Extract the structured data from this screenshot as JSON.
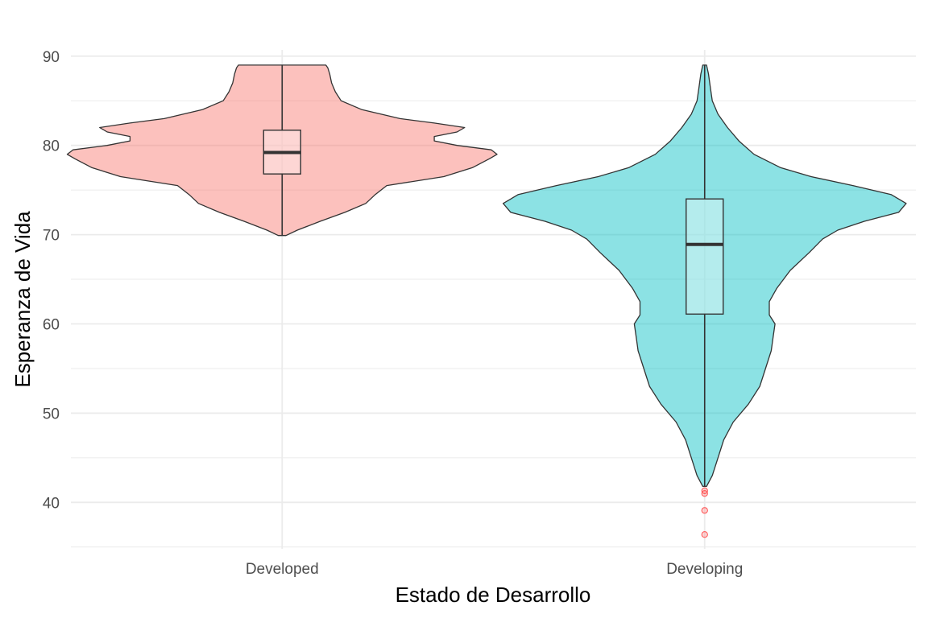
{
  "chart_data": {
    "type": "violin",
    "title": "",
    "xlabel": "Estado de Desarrollo",
    "ylabel": "Esperanza de Vida",
    "ylim": [
      34.8,
      90.7
    ],
    "yticks": [
      40,
      50,
      60,
      70,
      80,
      90
    ],
    "grid": true,
    "legend": "none",
    "categories": [
      "Developed",
      "Developing"
    ],
    "series": [
      {
        "category": "Developed",
        "color": "#F8766D",
        "min": 69.9,
        "q1": 76.8,
        "median": 79.2,
        "q3": 81.7,
        "max": 89.0,
        "outliers": [],
        "density": [
          [
            69.9,
            0.02
          ],
          [
            70.5,
            0.08
          ],
          [
            71.5,
            0.2
          ],
          [
            72.5,
            0.33
          ],
          [
            73.5,
            0.44
          ],
          [
            74.5,
            0.49
          ],
          [
            75.5,
            0.55
          ],
          [
            76.5,
            0.85
          ],
          [
            77.5,
            1.0
          ],
          [
            78.5,
            1.09
          ],
          [
            79.0,
            1.13
          ],
          [
            79.5,
            1.1
          ],
          [
            80.0,
            0.92
          ],
          [
            80.5,
            0.8
          ],
          [
            81.0,
            0.8
          ],
          [
            81.5,
            0.92
          ],
          [
            82.0,
            0.96
          ],
          [
            82.5,
            0.8
          ],
          [
            83.0,
            0.62
          ],
          [
            84.0,
            0.42
          ],
          [
            85.0,
            0.31
          ],
          [
            86.0,
            0.28
          ],
          [
            87.0,
            0.26
          ],
          [
            88.0,
            0.25
          ],
          [
            88.7,
            0.24
          ],
          [
            89.0,
            0.23
          ]
        ]
      },
      {
        "category": "Developing",
        "color": "#00BFC4",
        "min": 41.8,
        "q1": 61.1,
        "median": 68.9,
        "q3": 74.0,
        "max": 89.0,
        "outliers": [
          41.3,
          41.0,
          39.1,
          36.4
        ],
        "density": [
          [
            41.8,
            0.01
          ],
          [
            43.0,
            0.04
          ],
          [
            45.0,
            0.07
          ],
          [
            47.0,
            0.1
          ],
          [
            49.0,
            0.15
          ],
          [
            51.0,
            0.23
          ],
          [
            53.0,
            0.29
          ],
          [
            55.0,
            0.32
          ],
          [
            57.0,
            0.35
          ],
          [
            58.5,
            0.36
          ],
          [
            60.0,
            0.37
          ],
          [
            61.0,
            0.34
          ],
          [
            62.5,
            0.34
          ],
          [
            64.0,
            0.38
          ],
          [
            66.0,
            0.45
          ],
          [
            68.0,
            0.55
          ],
          [
            69.5,
            0.62
          ],
          [
            70.5,
            0.7
          ],
          [
            71.5,
            0.84
          ],
          [
            72.5,
            1.02
          ],
          [
            73.5,
            1.06
          ],
          [
            74.5,
            0.98
          ],
          [
            75.5,
            0.78
          ],
          [
            76.5,
            0.56
          ],
          [
            77.5,
            0.4
          ],
          [
            79.0,
            0.26
          ],
          [
            80.5,
            0.18
          ],
          [
            82.0,
            0.12
          ],
          [
            83.5,
            0.07
          ],
          [
            85.0,
            0.04
          ],
          [
            86.5,
            0.03
          ],
          [
            88.0,
            0.02
          ],
          [
            89.0,
            0.01
          ]
        ]
      }
    ]
  }
}
